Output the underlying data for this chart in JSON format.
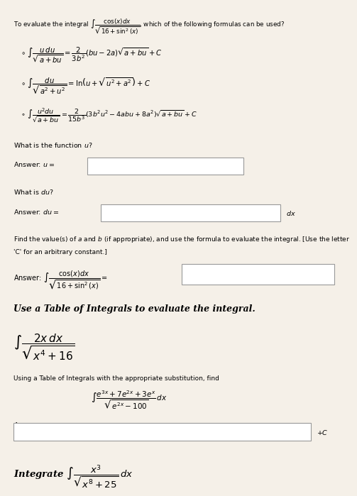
{
  "bg_color": "#f5f0e8",
  "text_color": "#000000",
  "title_text": "To evaluate the integral $\\int \\dfrac{\\cos(x)dx}{\\sqrt{16 + \\sin^2(x)}}$, which of the following formulas can be used?",
  "formula1": "$\\circ\\ \\int \\dfrac{u\\,du}{\\sqrt{a+bu}} = \\dfrac{2}{3b^2}(bu-2a)\\sqrt{a+bu}+C$",
  "formula2": "$\\circ\\ \\int \\dfrac{du}{\\sqrt{a^2+u^2}} = \\ln\\!\\left(u+\\sqrt{u^2+a^2}\\right)+C$",
  "formula3": "$\\circ\\ \\int \\dfrac{u^2 du}{\\sqrt{a+bu}} = \\dfrac{2}{15b^3}\\left(3b^2u^2-4abu+8a^2\\right)\\sqrt{a+bu}+C$",
  "q1": "What is the function $u$?",
  "ans_u_label": "Answer: $u =$",
  "q2": "What is $du$?",
  "ans_du_label": "Answer: $du =$",
  "du_suffix": "$dx$",
  "q3_line1": "Find the value(s) of $a$ and $b$ (if appropriate), and use the formula to evaluate the integral. [Use the letter",
  "q3_line2": "'C' for an arbitrary constant.]",
  "ans_integral_label": "Answer: $\\int \\dfrac{\\cos(x)dx}{\\sqrt{16+\\sin^2(x)}} =$",
  "section2_title": "Use a Table of Integrals to evaluate the integral.",
  "integral2": "$\\int \\dfrac{2x\\,dx}{\\sqrt{x^4+16}}$",
  "q4_line1": "Using a Table of Integrals with the appropriate substitution, find",
  "q4_line2": "$\\int \\dfrac{e^{3x}+7e^{2x}+3e^{x}}{\\sqrt{e^{2x}-100}}\\,dx$",
  "ans_label": "Answer:",
  "plus_c": "$+C$",
  "section3_title": "Integrate $\\int \\dfrac{x^3}{\\sqrt{x^8+25}}\\,dx$"
}
